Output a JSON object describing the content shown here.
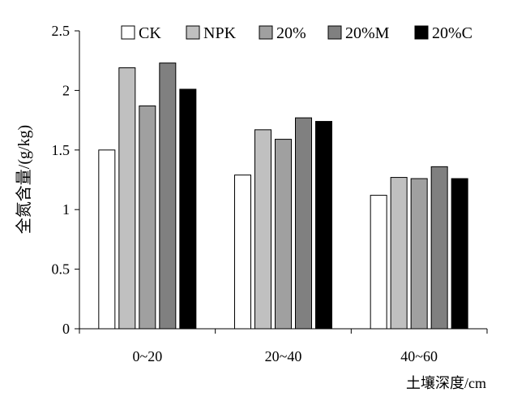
{
  "chart_data": {
    "type": "bar",
    "title": "",
    "xlabel": "土壤深度/cm",
    "ylabel": "全氮含量/(g/kg)",
    "categories": [
      "0~20",
      "20~40",
      "40~60"
    ],
    "ylim": [
      0,
      2.5
    ],
    "yticks": [
      "0",
      "0.5",
      "1",
      "1.5",
      "2",
      "2.5"
    ],
    "grid": false,
    "legend_position": "top-right",
    "series": [
      {
        "name": "CK",
        "color": "#ffffff",
        "values": [
          1.5,
          1.29,
          1.12
        ]
      },
      {
        "name": "NPK",
        "color": "#c0c0c0",
        "values": [
          2.19,
          1.67,
          1.27
        ]
      },
      {
        "name": "20%",
        "color": "#a0a0a0",
        "values": [
          1.87,
          1.59,
          1.26
        ]
      },
      {
        "name": "20%M",
        "color": "#808080",
        "values": [
          2.23,
          1.77,
          1.36
        ]
      },
      {
        "name": "20%C",
        "color": "#000000",
        "values": [
          2.01,
          1.74,
          1.26
        ]
      }
    ]
  }
}
